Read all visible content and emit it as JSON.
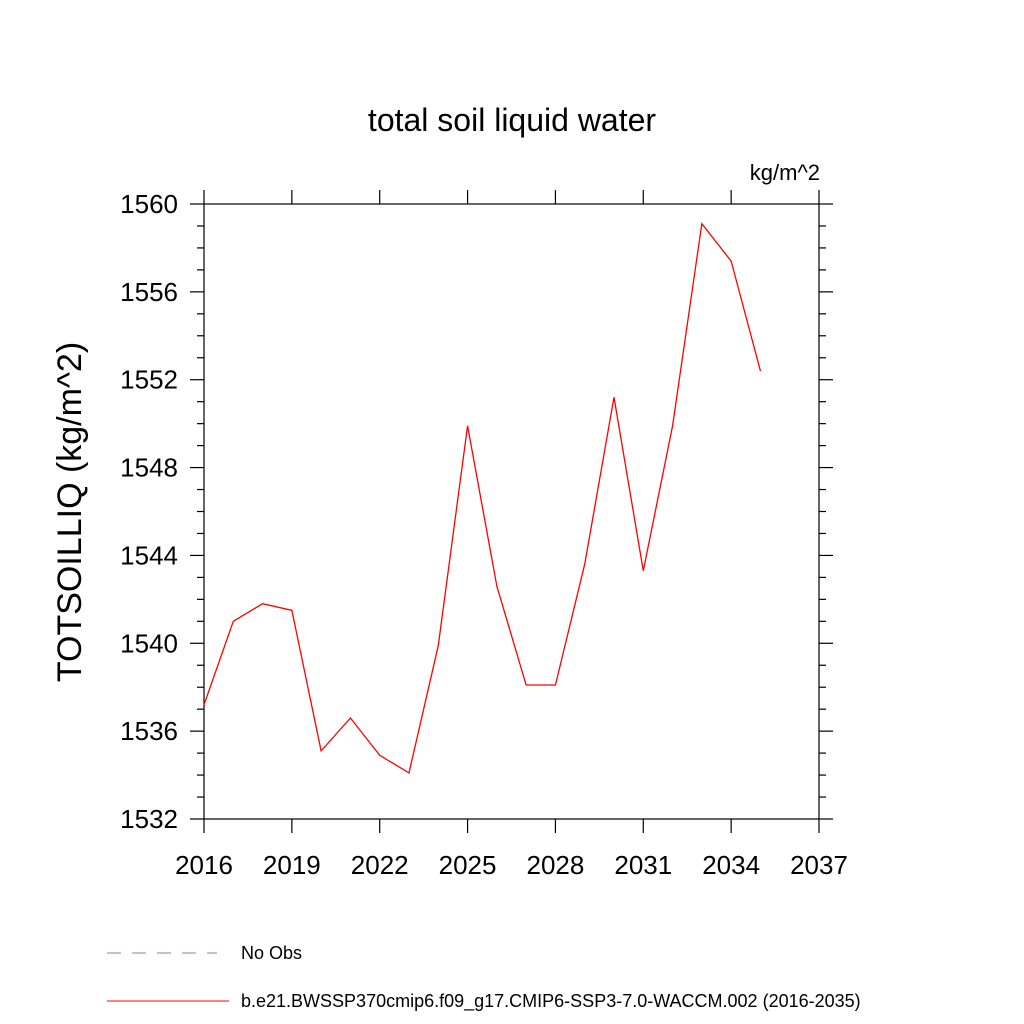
{
  "chart_data": {
    "type": "line",
    "title": "total soil liquid water",
    "units_label": "kg/m^2",
    "ylabel": "TOTSOILLIQ  (kg/m^2)",
    "xlabel": "",
    "xlim": [
      2016,
      2037
    ],
    "ylim": [
      1532,
      1560
    ],
    "x_ticks": [
      2016,
      2019,
      2022,
      2025,
      2028,
      2031,
      2034,
      2037
    ],
    "y_ticks": [
      1532,
      1536,
      1540,
      1544,
      1548,
      1552,
      1556,
      1560
    ],
    "grid": false,
    "series": [
      {
        "name": "b.e21.BWSSP370cmip6.f09_g17.CMIP6-SSP3-7.0-WACCM.002 (2016-2035)",
        "color": "#ff0000",
        "x": [
          2016,
          2017,
          2018,
          2019,
          2020,
          2021,
          2022,
          2023,
          2024,
          2025,
          2026,
          2027,
          2028,
          2029,
          2030,
          2031,
          2032,
          2033,
          2034,
          2035
        ],
        "y": [
          1537.2,
          1541.0,
          1541.8,
          1541.5,
          1535.1,
          1536.6,
          1534.9,
          1534.1,
          1539.9,
          1549.9,
          1542.6,
          1538.1,
          1538.1,
          1543.6,
          1551.2,
          1543.3,
          1549.9,
          1559.1,
          1557.4,
          1552.4
        ]
      }
    ],
    "legend": {
      "placement": "bottom",
      "entries": [
        {
          "label": "No Obs",
          "color": "#8080c0",
          "style": "dashed"
        },
        {
          "label": "b.e21.BWSSP370cmip6.f09_g17.CMIP6-SSP3-7.0-WACCM.002 (2016-2035)",
          "color": "#ff0000",
          "style": "solid"
        }
      ]
    }
  }
}
